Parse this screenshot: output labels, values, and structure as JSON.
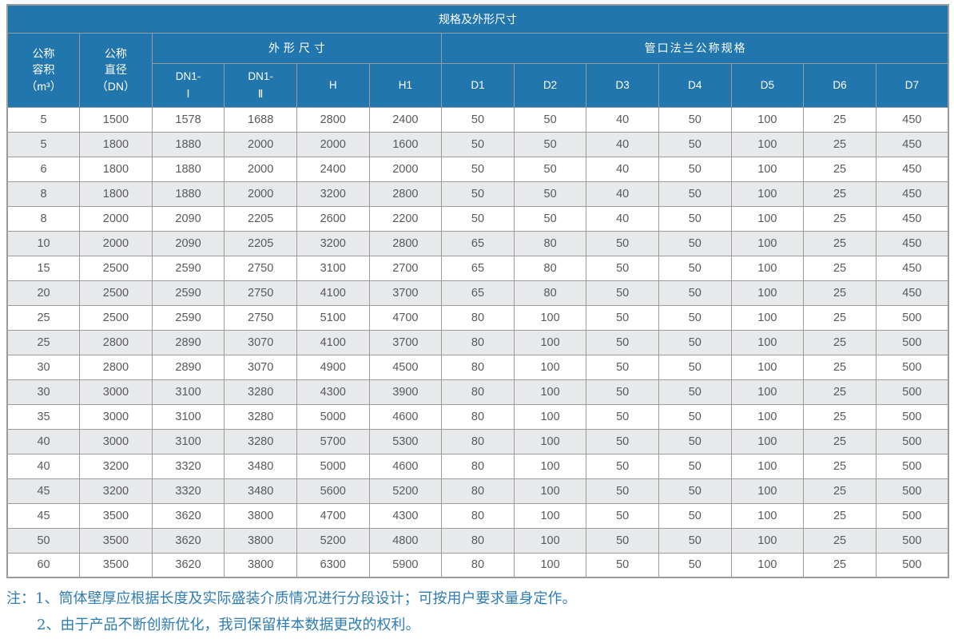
{
  "table": {
    "title": "规格及外形尺寸",
    "header": {
      "volume": "公称\n容积\n（m³）",
      "diameter": "公称\n直径\n（DN）",
      "dimensions_group": "外形尺寸",
      "flange_group": "管口法兰公称规格",
      "dim_cols": [
        "DN1-\nⅠ",
        "DN1-\nⅡ",
        "H",
        "H1"
      ],
      "flange_cols": [
        "D1",
        "D2",
        "D3",
        "D4",
        "D5",
        "D6",
        "D7"
      ]
    },
    "rows": [
      [
        5,
        1500,
        1578,
        1688,
        2800,
        2400,
        50,
        50,
        40,
        50,
        100,
        25,
        450
      ],
      [
        5,
        1800,
        1880,
        2000,
        2000,
        1600,
        50,
        50,
        40,
        50,
        100,
        25,
        450
      ],
      [
        6,
        1800,
        1880,
        2000,
        2400,
        2000,
        50,
        50,
        40,
        50,
        100,
        25,
        450
      ],
      [
        8,
        1800,
        1880,
        2000,
        3200,
        2800,
        50,
        50,
        40,
        50,
        100,
        25,
        450
      ],
      [
        8,
        2000,
        2090,
        2205,
        2600,
        2200,
        50,
        50,
        40,
        50,
        100,
        25,
        450
      ],
      [
        10,
        2000,
        2090,
        2205,
        3200,
        2800,
        65,
        80,
        50,
        50,
        100,
        25,
        450
      ],
      [
        15,
        2500,
        2590,
        2750,
        3100,
        2700,
        65,
        80,
        50,
        50,
        100,
        25,
        450
      ],
      [
        20,
        2500,
        2590,
        2750,
        4100,
        3700,
        65,
        80,
        50,
        50,
        100,
        25,
        450
      ],
      [
        25,
        2500,
        2590,
        2750,
        5100,
        4700,
        80,
        100,
        50,
        50,
        100,
        25,
        500
      ],
      [
        25,
        2800,
        2890,
        3070,
        4100,
        3700,
        80,
        100,
        50,
        50,
        100,
        25,
        500
      ],
      [
        30,
        2800,
        2890,
        3070,
        4900,
        4500,
        80,
        100,
        50,
        50,
        100,
        25,
        500
      ],
      [
        30,
        3000,
        3100,
        3280,
        4300,
        3900,
        80,
        100,
        50,
        50,
        100,
        25,
        500
      ],
      [
        35,
        3000,
        3100,
        3280,
        5000,
        4600,
        80,
        100,
        50,
        50,
        100,
        25,
        500
      ],
      [
        40,
        3000,
        3100,
        3280,
        5700,
        5300,
        80,
        100,
        50,
        50,
        100,
        25,
        500
      ],
      [
        40,
        3200,
        3320,
        3480,
        5000,
        4600,
        80,
        100,
        50,
        50,
        100,
        25,
        500
      ],
      [
        45,
        3200,
        3320,
        3480,
        5600,
        5200,
        80,
        100,
        50,
        50,
        100,
        25,
        500
      ],
      [
        45,
        3500,
        3620,
        3800,
        4700,
        4300,
        80,
        100,
        50,
        50,
        100,
        25,
        500
      ],
      [
        50,
        3500,
        3620,
        3800,
        5200,
        4800,
        80,
        100,
        50,
        50,
        100,
        25,
        500
      ],
      [
        60,
        3500,
        3620,
        3800,
        6300,
        5900,
        80,
        100,
        50,
        50,
        100,
        25,
        500
      ]
    ]
  },
  "notes": {
    "line1": "注：1、筒体壁厚应根据长度及实际盛装介质情况进行分段设计；可按用户要求量身定作。",
    "line2": "2、由于产品不断创新优化，我司保留样本数据更改的权利。"
  },
  "colors": {
    "header_blue": "#2176ae",
    "row_alt_gray": "#e7e9ea",
    "border_gray": "#9b9b9b",
    "data_text": "#58595b",
    "note_blue": "#2e7cb3"
  }
}
